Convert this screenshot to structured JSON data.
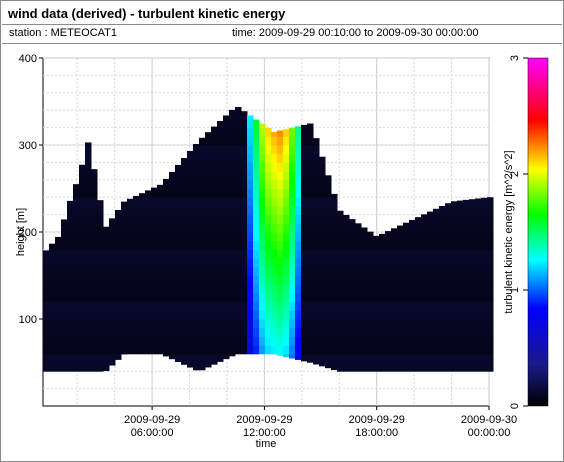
{
  "header": {
    "title": "wind data (derived) - turbulent kinetic energy",
    "station": "station : METEOCAT1",
    "time_range": "time: 2009-09-29 00:10:00 to 2009-09-30 00:00:00"
  },
  "chart_data": {
    "type": "heatmap",
    "xlabel": "time",
    "ylabel": "height [m]",
    "colorbar_label": "turbulent kinetic energy [m^2/s^2]",
    "x_range": [
      "2009-09-29 00:10:00",
      "2009-09-30 00:00:00"
    ],
    "x_range_hours": [
      0.17,
      24
    ],
    "x_ticks": [
      {
        "hours": 6,
        "line1": "2009-09-29",
        "line2": "06:00:00"
      },
      {
        "hours": 12,
        "line1": "2009-09-29",
        "line2": "12:00:00"
      },
      {
        "hours": 18,
        "line1": "2009-09-29",
        "line2": "18:00:00"
      },
      {
        "hours": 24,
        "line1": "2009-09-30",
        "line2": "00:00:00"
      }
    ],
    "ylim": [
      0,
      400
    ],
    "y_ticks": [
      100,
      200,
      300,
      400
    ],
    "color_scale": {
      "min": 0,
      "max": 3,
      "ticks": [
        0,
        1,
        2,
        3
      ]
    },
    "grid": true,
    "colormap": [
      "#000000",
      "#1a1a8a",
      "#0000ff",
      "#00ffff",
      "#00ff00",
      "#ffff00",
      "#ff0000",
      "#ff00ff"
    ],
    "data_coverage": [
      {
        "hours": 0.17,
        "bottom_m": 40,
        "top_m": 175
      },
      {
        "hours": 1.0,
        "bottom_m": 40,
        "top_m": 195
      },
      {
        "hours": 1.6,
        "bottom_m": 40,
        "top_m": 235
      },
      {
        "hours": 2.1,
        "bottom_m": 40,
        "top_m": 265
      },
      {
        "hours": 2.6,
        "bottom_m": 40,
        "top_m": 305
      },
      {
        "hours": 3.5,
        "bottom_m": 40,
        "top_m": 205
      },
      {
        "hours": 4.5,
        "bottom_m": 60,
        "top_m": 235
      },
      {
        "hours": 6.5,
        "bottom_m": 60,
        "top_m": 255
      },
      {
        "hours": 8.5,
        "bottom_m": 40,
        "top_m": 305
      },
      {
        "hours": 10.5,
        "bottom_m": 60,
        "top_m": 345
      },
      {
        "hours": 12.5,
        "bottom_m": 60,
        "top_m": 315
      },
      {
        "hours": 14.5,
        "bottom_m": 50,
        "top_m": 325
      },
      {
        "hours": 16.0,
        "bottom_m": 40,
        "top_m": 225
      },
      {
        "hours": 18.0,
        "bottom_m": 40,
        "top_m": 195
      },
      {
        "hours": 20.0,
        "bottom_m": 40,
        "top_m": 215
      },
      {
        "hours": 22.0,
        "bottom_m": 40,
        "top_m": 235
      },
      {
        "hours": 24.0,
        "bottom_m": 40,
        "top_m": 240
      }
    ],
    "tke_profile": [
      {
        "hours": 11.0,
        "value": 1.0
      },
      {
        "hours": 11.5,
        "value": 1.6
      },
      {
        "hours": 12.0,
        "value": 2.2
      },
      {
        "hours": 12.5,
        "value": 2.3
      },
      {
        "hours": 13.0,
        "value": 2.4
      },
      {
        "hours": 13.5,
        "value": 1.9
      },
      {
        "hours": 14.0,
        "value": 1.2
      }
    ]
  }
}
